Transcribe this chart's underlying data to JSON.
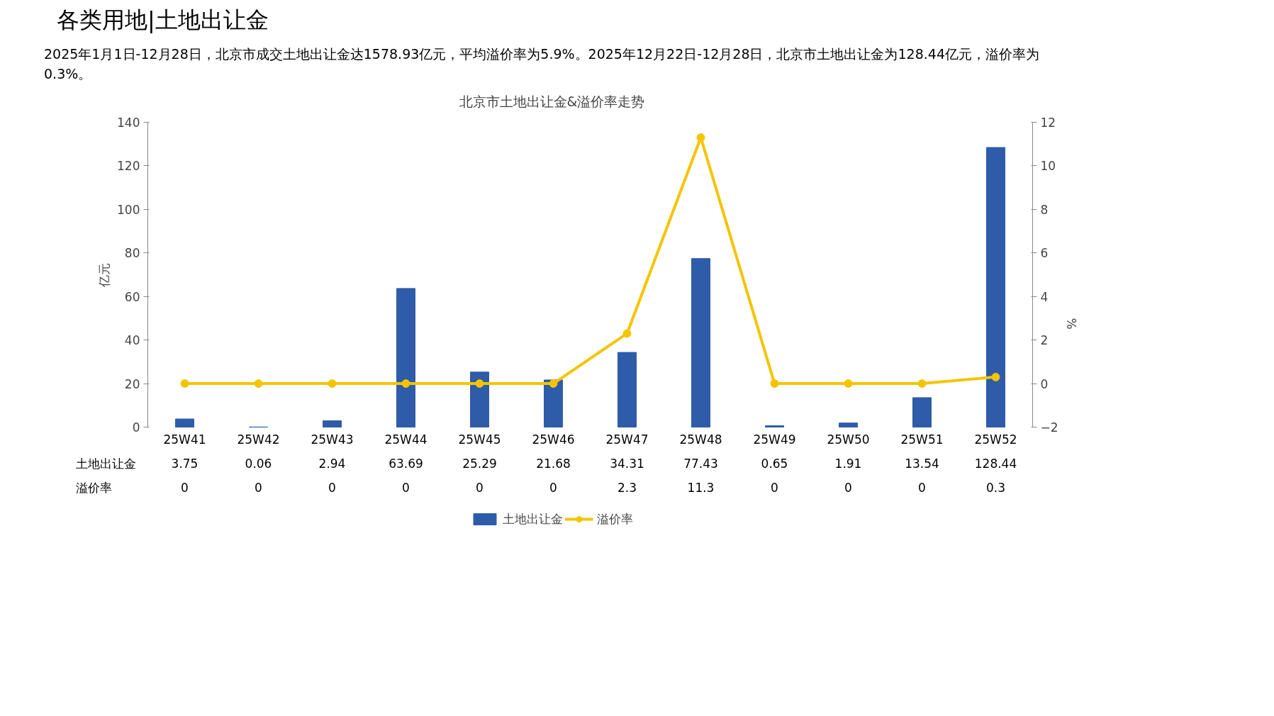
{
  "chart_data": {
    "type": "bar",
    "title": "北京市土地出让金&溢价率走势",
    "annotations": [
      "各类用地|土地出让金",
      "2025年1月1日-12月28日，北京市成交土地出让金达1578.93亿元，平均溢价率为5.9%。2025年12月22日-12月28日，北京市土地出让金为128.44亿元，溢价率为0.3%。"
    ],
    "ylabel": "亿元",
    "y2label": "%",
    "categories": [
      "25W41",
      "25W42",
      "25W43",
      "25W44",
      "25W45",
      "25W46",
      "25W47",
      "25W48",
      "25W49",
      "25W50",
      "25W51",
      "25W52"
    ],
    "series": [
      {
        "name": "土地出让金",
        "color": "#2e5ca8",
        "values": [
          3.75,
          0.06,
          2.94,
          63.69,
          25.29,
          21.68,
          34.31,
          77.43,
          0.65,
          1.91,
          13.54,
          128.44
        ]
      },
      {
        "name": "溢价率",
        "type": "line",
        "axis": "y2",
        "color": "#f5c400",
        "values": [
          0,
          0,
          0,
          0,
          0,
          0,
          2.3,
          11.3,
          0,
          0,
          0,
          0.3
        ]
      }
    ],
    "ylim": [
      0,
      140
    ],
    "yticks": [
      0,
      20,
      40,
      60,
      80,
      100,
      120,
      140
    ],
    "y2lim": [
      -2,
      12
    ],
    "y2ticks": [
      -2,
      0,
      2,
      4,
      6,
      8,
      10,
      12
    ],
    "data_labels": true,
    "grid": false,
    "legend": "bottom",
    "marker": "circle",
    "line_style": "solid"
  }
}
